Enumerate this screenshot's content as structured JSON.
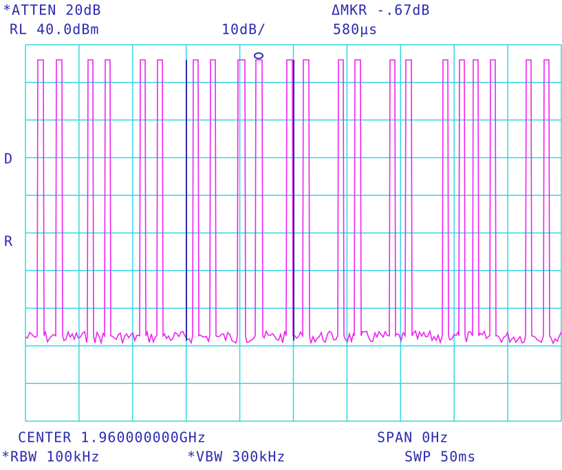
{
  "header": {
    "atten": "*ATTEN 20dB",
    "ref_level": "RL 40.0dBm",
    "scale": "10dB/",
    "marker": "ΔMKR -.67dB",
    "marker_time": "580μs"
  },
  "side": {
    "d": "D",
    "r": "R"
  },
  "footer": {
    "center": "CENTER 1.960000000GHz",
    "span": "SPAN 0Hz",
    "rbw": "*RBW 100kHz",
    "vbw": "*VBW 300kHz",
    "sweep": "SWP 50ms"
  }
}
